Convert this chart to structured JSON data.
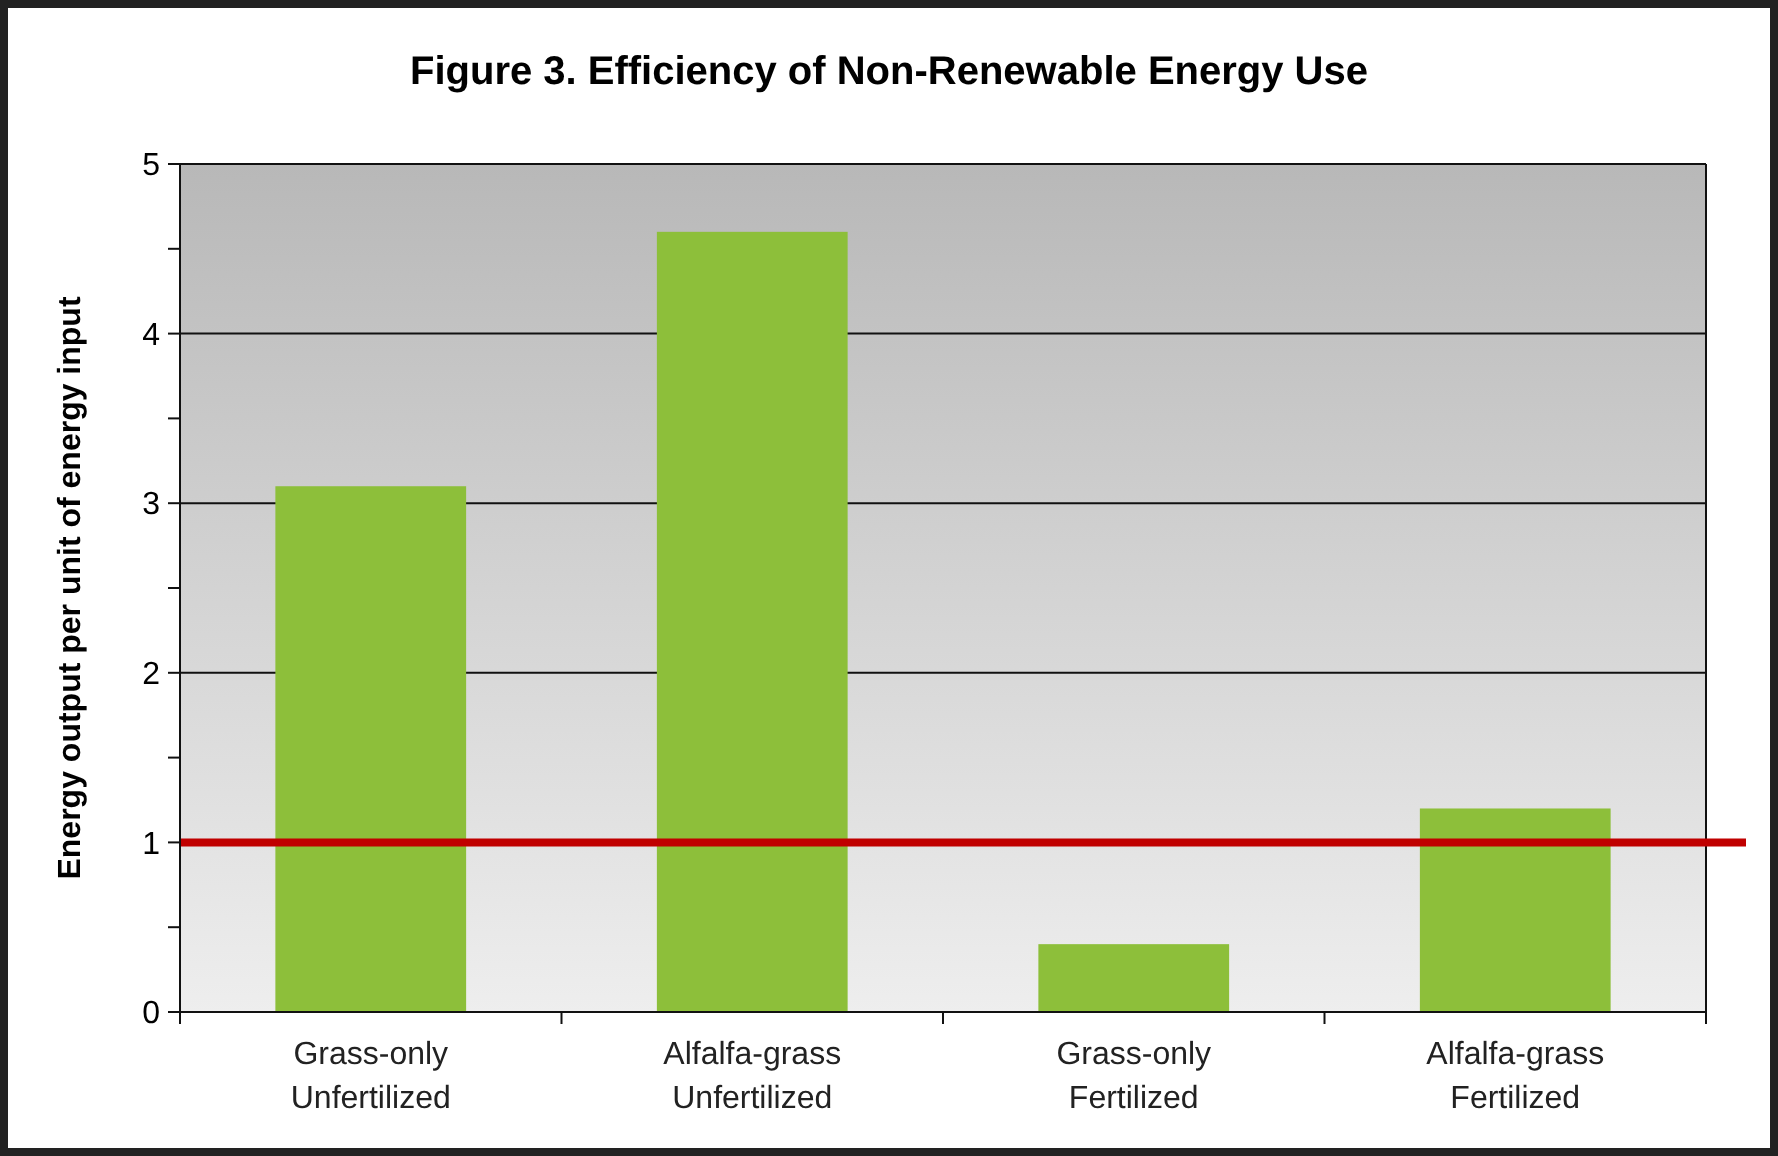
{
  "chart_data": {
    "type": "bar",
    "title": "Figure 3. Efficiency of Non-Renewable Energy Use",
    "ylabel": "Energy output per unit of energy input",
    "categories": [
      "Grass-only Unfertilized",
      "Alfalfa-grass Unfertilized",
      "Grass-only Fertilized",
      "Alfalfa-grass Fertilized"
    ],
    "values": [
      3.1,
      4.6,
      0.4,
      1.2
    ],
    "color": "#8dbf3a",
    "ylim": [
      0,
      5
    ],
    "yticks": [
      0,
      {
        "value": 0.5,
        "label": null
      },
      1,
      {
        "value": 1.5,
        "label": null
      },
      2,
      {
        "value": 2.5,
        "label": null
      },
      3,
      {
        "value": 3.5,
        "label": null
      },
      4,
      {
        "value": 4.5,
        "label": null
      },
      5
    ],
    "grid": "y",
    "ref_lines": [
      {
        "axis": "y",
        "value": 1,
        "color": "#c00000"
      }
    ]
  }
}
